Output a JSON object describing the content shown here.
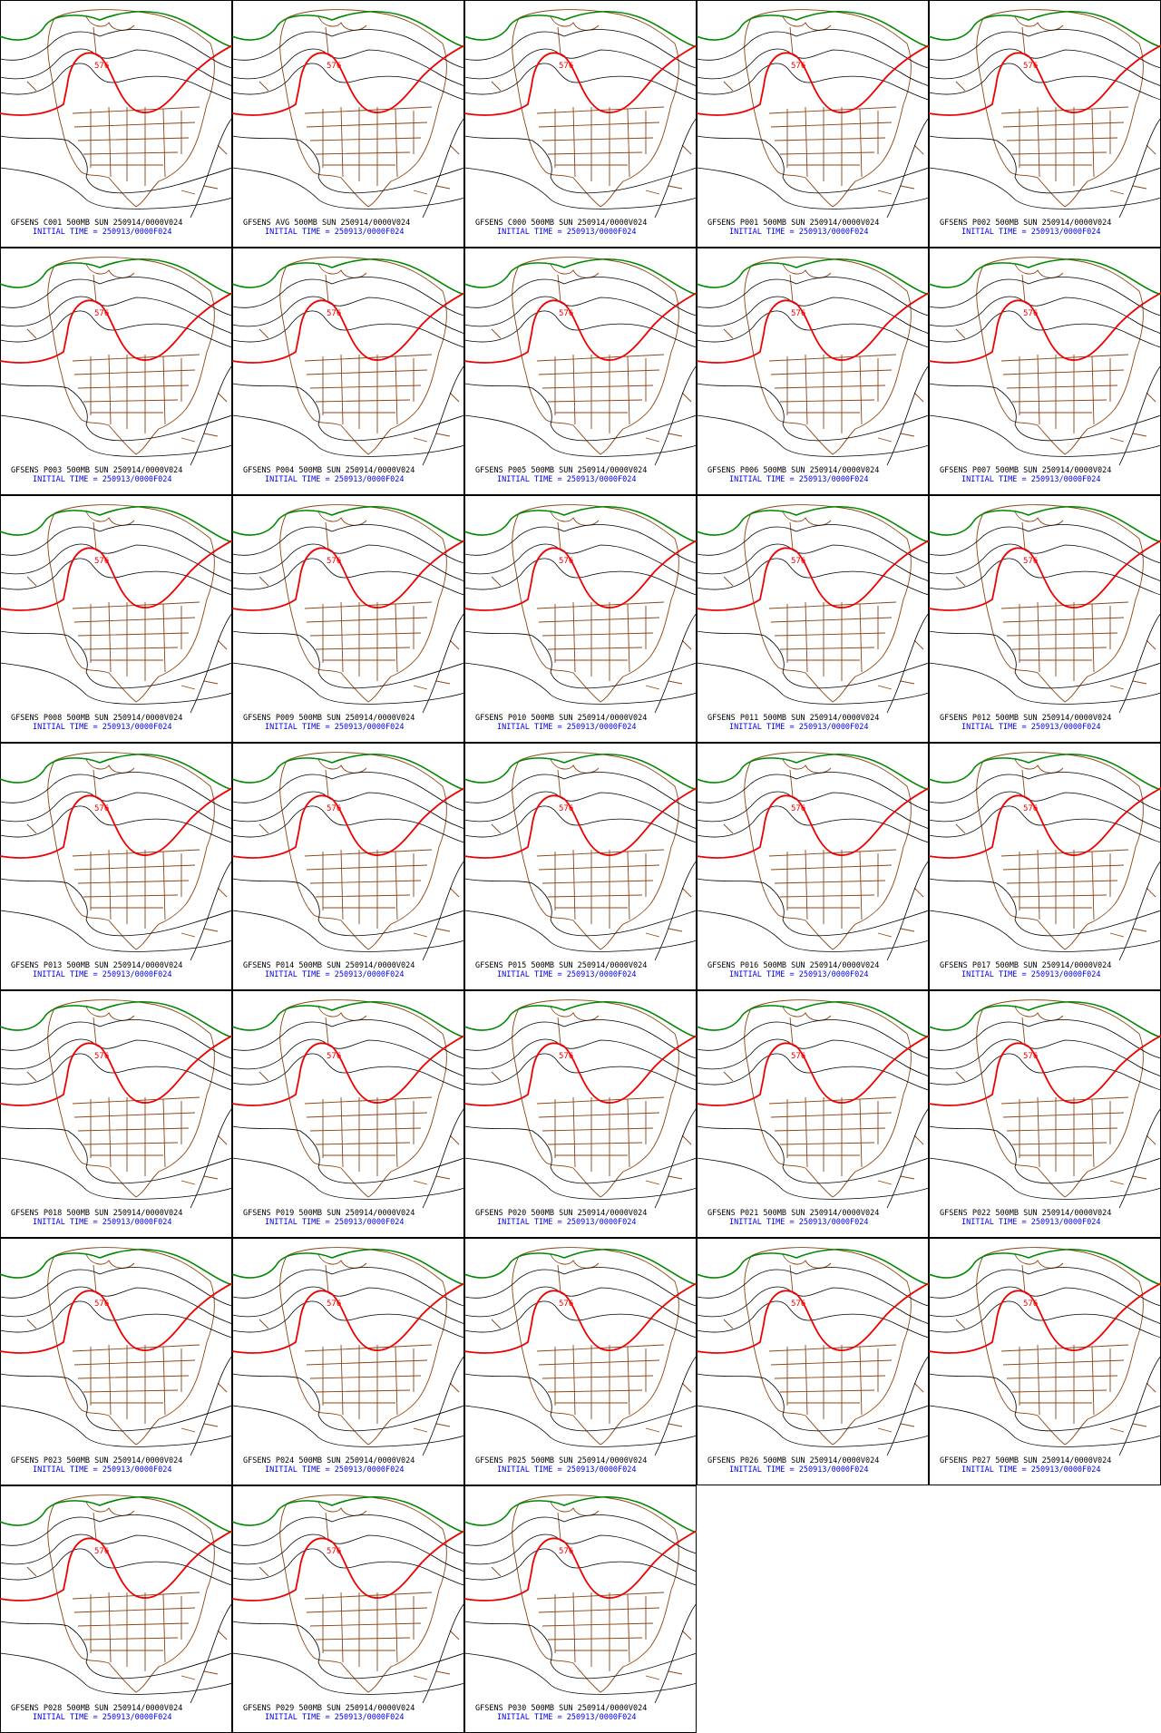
{
  "panels": [
    {
      "title": "GFSENS C001 500MB SUN 250914/0000V024",
      "init": "INITIAL TIME = 250913/0000F024",
      "contour_label": "576"
    },
    {
      "title": "GFSENS AVG 500MB SUN 250914/0000V024",
      "init": "INITIAL TIME = 250913/0000F024",
      "contour_label": "576"
    },
    {
      "title": "GFSENS C000 500MB SUN 250914/0000V024",
      "init": "INITIAL TIME = 250913/0000F024",
      "contour_label": "576"
    },
    {
      "title": "GFSENS P001 500MB SUN 250914/0000V024",
      "init": "INITIAL TIME = 250913/0000F024",
      "contour_label": "576"
    },
    {
      "title": "GFSENS P002 500MB SUN 250914/0000V024",
      "init": "INITIAL TIME = 250913/0000F024",
      "contour_label": "576"
    },
    {
      "title": "GFSENS P003 500MB SUN 250914/0000V024",
      "init": "INITIAL TIME = 250913/0000F024",
      "contour_label": "576"
    },
    {
      "title": "GFSENS P004 500MB SUN 250914/0000V024",
      "init": "INITIAL TIME = 250913/0000F024",
      "contour_label": "576"
    },
    {
      "title": "GFSENS P005 500MB SUN 250914/0000V024",
      "init": "INITIAL TIME = 250913/0000F024",
      "contour_label": "576"
    },
    {
      "title": "GFSENS P006 500MB SUN 250914/0000V024",
      "init": "INITIAL TIME = 250913/0000F024",
      "contour_label": "576"
    },
    {
      "title": "GFSENS P007 500MB SUN 250914/0000V024",
      "init": "INITIAL TIME = 250913/0000F024",
      "contour_label": "576"
    },
    {
      "title": "GFSENS P008 500MB SUN 250914/0000V024",
      "init": "INITIAL TIME = 250913/0000F024",
      "contour_label": "576"
    },
    {
      "title": "GFSENS P009 500MB SUN 250914/0000V024",
      "init": "INITIAL TIME = 250913/0000F024",
      "contour_label": "576"
    },
    {
      "title": "GFSENS P010 500MB SUN 250914/0000V024",
      "init": "INITIAL TIME = 250913/0000F024",
      "contour_label": "576"
    },
    {
      "title": "GFSENS P011 500MB SUN 250914/0000V024",
      "init": "INITIAL TIME = 250913/0000F024",
      "contour_label": "576"
    },
    {
      "title": "GFSENS P012 500MB SUN 250914/0000V024",
      "init": "INITIAL TIME = 250913/0000F024",
      "contour_label": "576"
    },
    {
      "title": "GFSENS P013 500MB SUN 250914/0000V024",
      "init": "INITIAL TIME = 250913/0000F024",
      "contour_label": "576"
    },
    {
      "title": "GFSENS P014 500MB SUN 250914/0000V024",
      "init": "INITIAL TIME = 250913/0000F024",
      "contour_label": "576"
    },
    {
      "title": "GFSENS P015 500MB SUN 250914/0000V024",
      "init": "INITIAL TIME = 250913/0000F024",
      "contour_label": "576"
    },
    {
      "title": "GFSENS P016 500MB SUN 250914/0000V024",
      "init": "INITIAL TIME = 250913/0000F024",
      "contour_label": "576"
    },
    {
      "title": "GFSENS P017 500MB SUN 250914/0000V024",
      "init": "INITIAL TIME = 250913/0000F024",
      "contour_label": "576"
    },
    {
      "title": "GFSENS P018 500MB SUN 250914/0000V024",
      "init": "INITIAL TIME = 250913/0000F024",
      "contour_label": "576"
    },
    {
      "title": "GFSENS P019 500MB SUN 250914/0000V024",
      "init": "INITIAL TIME = 250913/0000F024",
      "contour_label": "576"
    },
    {
      "title": "GFSENS P020 500MB SUN 250914/0000V024",
      "init": "INITIAL TIME = 250913/0000F024",
      "contour_label": "576"
    },
    {
      "title": "GFSENS P021 500MB SUN 250914/0000V024",
      "init": "INITIAL TIME = 250913/0000F024",
      "contour_label": "576"
    },
    {
      "title": "GFSENS P022 500MB SUN 250914/0000V024",
      "init": "INITIAL TIME = 250913/0000F024",
      "contour_label": "576"
    },
    {
      "title": "GFSENS P023 500MB SUN 250914/0000V024",
      "init": "INITIAL TIME = 250913/0000F024",
      "contour_label": "576"
    },
    {
      "title": "GFSENS P024 500MB SUN 250914/0000V024",
      "init": "INITIAL TIME = 250913/0000F024",
      "contour_label": "576"
    },
    {
      "title": "GFSENS P025 500MB SUN 250914/0000V024",
      "init": "INITIAL TIME = 250913/0000F024",
      "contour_label": "576"
    },
    {
      "title": "GFSENS P026 500MB SUN 250914/0000V024",
      "init": "INITIAL TIME = 250913/0000F024",
      "contour_label": "576"
    },
    {
      "title": "GFSENS P027 500MB SUN 250914/0000V024",
      "init": "INITIAL TIME = 250913/0000F024",
      "contour_label": "576"
    },
    {
      "title": "GFSENS P028 500MB SUN 250914/0000V024",
      "init": "INITIAL TIME = 250913/0000F024",
      "contour_label": "576"
    },
    {
      "title": "GFSENS P029 500MB SUN 250914/0000V024",
      "init": "INITIAL TIME = 250913/0000F024",
      "contour_label": "576"
    },
    {
      "title": "GFSENS P030 500MB SUN 250914/0000V024",
      "init": "INITIAL TIME = 250913/0000F024",
      "contour_label": "576"
    }
  ]
}
